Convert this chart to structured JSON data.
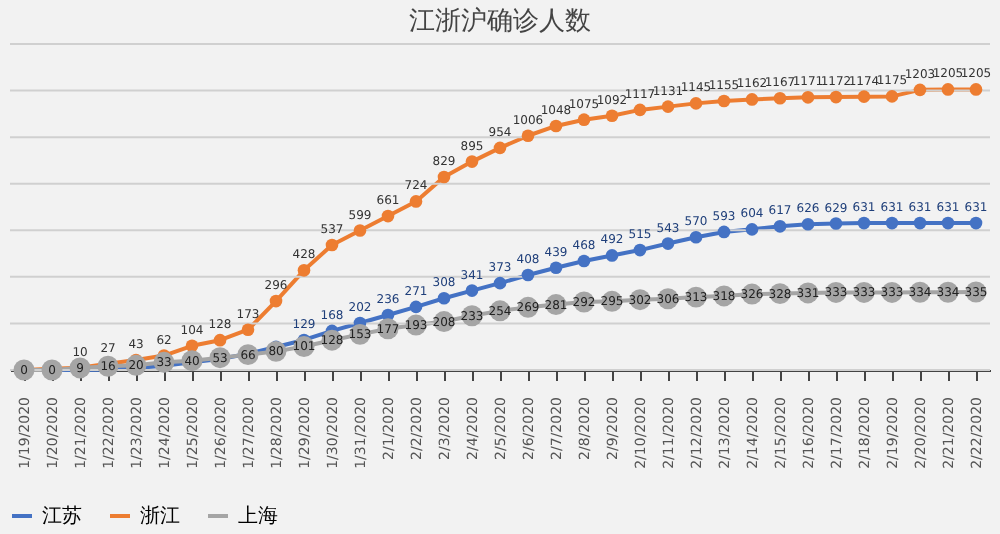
{
  "chart_data": {
    "type": "line",
    "title": "江浙沪确诊人数",
    "categories": [
      "1/19/2020",
      "1/20/2020",
      "1/21/2020",
      "1/22/2020",
      "1/23/2020",
      "1/24/2020",
      "1/25/2020",
      "1/26/2020",
      "1/27/2020",
      "1/28/2020",
      "1/29/2020",
      "1/30/2020",
      "1/31/2020",
      "2/1/2020",
      "2/2/2020",
      "2/3/2020",
      "2/4/2020",
      "2/5/2020",
      "2/6/2020",
      "2/7/2020",
      "2/8/2020",
      "2/9/2020",
      "2/10/2020",
      "2/11/2020",
      "2/12/2020",
      "2/13/2020",
      "2/14/2020",
      "2/15/2020",
      "2/16/2020",
      "2/17/2020",
      "2/18/2020",
      "2/19/2020",
      "2/20/2020",
      "2/21/2020",
      "2/22/2020"
    ],
    "series": [
      {
        "name": "江苏",
        "color": "#4472c4",
        "value_labels": [
          null,
          null,
          null,
          null,
          null,
          null,
          null,
          null,
          null,
          null,
          "129",
          "168",
          "202",
          "236",
          "271",
          "308",
          "341",
          "373",
          "408",
          "439",
          "468",
          "492",
          "515",
          "543",
          "570",
          "593",
          "604",
          "617",
          "626",
          "629",
          "631",
          "631",
          "631",
          "631",
          "631"
        ],
        "values": [
          0,
          0,
          0,
          1,
          9,
          18,
          33,
          47,
          70,
          99,
          129,
          168,
          202,
          236,
          271,
          308,
          341,
          373,
          408,
          439,
          468,
          492,
          515,
          543,
          570,
          593,
          604,
          617,
          626,
          629,
          631,
          631,
          631,
          631,
          631
        ]
      },
      {
        "name": "浙江",
        "color": "#ed7d31",
        "value_labels": [
          null,
          null,
          "10",
          "27",
          "43",
          "62",
          "104",
          "128",
          "173",
          "296",
          "428",
          "537",
          "599",
          "661",
          "724",
          "829",
          "895",
          "954",
          "1006",
          "1048",
          "1075",
          "1092",
          "1117",
          "1131",
          "1145",
          "1155",
          "1162",
          "1167",
          "1171",
          "1172",
          "1174",
          "1175",
          "1203",
          "1205",
          "1205"
        ],
        "values": [
          0,
          5,
          10,
          27,
          43,
          62,
          104,
          128,
          173,
          296,
          428,
          537,
          599,
          661,
          724,
          829,
          895,
          954,
          1006,
          1048,
          1075,
          1092,
          1117,
          1131,
          1145,
          1155,
          1162,
          1167,
          1171,
          1172,
          1174,
          1175,
          1203,
          1205,
          1205
        ]
      },
      {
        "name": "上海",
        "color": "#a5a5a5",
        "values": [
          0,
          0,
          9,
          16,
          20,
          33,
          40,
          53,
          66,
          80,
          101,
          128,
          153,
          177,
          193,
          208,
          233,
          254,
          269,
          281,
          292,
          295,
          302,
          306,
          313,
          318,
          326,
          328,
          331,
          333,
          333,
          333,
          334,
          334,
          335
        ]
      }
    ],
    "ylim": [
      0,
      1400
    ],
    "yticks": [
      {
        "value": 0,
        "label": null
      },
      {
        "value": 200,
        "label": null
      },
      {
        "value": 400,
        "label": null
      },
      {
        "value": 600,
        "label": null
      },
      {
        "value": 800,
        "label": null
      },
      {
        "value": 1000,
        "label": null
      },
      {
        "value": 1200,
        "label": null
      },
      {
        "value": 1400,
        "label": null
      }
    ],
    "tick_labels": "x",
    "grid": "y",
    "marker": "circle",
    "data_labels": true,
    "legend": "bottom",
    "line_style": "solid"
  }
}
